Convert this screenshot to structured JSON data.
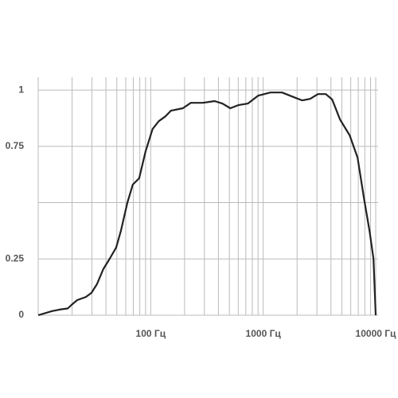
{
  "chart_data": {
    "type": "line",
    "log_x": true,
    "grid": true,
    "x": [
      10,
      13.2,
      15.5,
      18.3,
      19.8,
      22.2,
      26.5,
      29.7,
      33.3,
      37.9,
      43.2,
      49.3,
      54.3,
      61.9,
      69.3,
      78.9,
      90,
      104,
      118,
      135,
      151,
      193,
      227,
      290,
      370,
      434,
      510,
      600,
      730,
      900,
      1160,
      1470,
      1880,
      2220,
      2610,
      3070,
      3600,
      4100,
      4820,
      5870,
      6900,
      7880,
      8800,
      9550,
      10000
    ],
    "series": [
      {
        "color": "#222222",
        "values": [
          0,
          0.018,
          0.025,
          0.03,
          0.046,
          0.067,
          0.081,
          0.099,
          0.138,
          0.205,
          0.251,
          0.3,
          0.375,
          0.498,
          0.58,
          0.608,
          0.728,
          0.827,
          0.862,
          0.883,
          0.908,
          0.919,
          0.943,
          0.943,
          0.951,
          0.94,
          0.919,
          0.933,
          0.94,
          0.975,
          0.989,
          0.989,
          0.968,
          0.954,
          0.961,
          0.982,
          0.982,
          0.958,
          0.869,
          0.799,
          0.7,
          0.516,
          0.375,
          0.251,
          0
        ]
      }
    ],
    "xlim": [
      10,
      10500
    ],
    "xticks": [
      {
        "value": 100,
        "label": "100 Гц"
      },
      {
        "value": 1000,
        "label": "1000 Гц"
      },
      {
        "value": 10000,
        "label": "10000 Гц"
      }
    ],
    "x_minor_grid": [
      20,
      30,
      40,
      50,
      60,
      70,
      80,
      90,
      200,
      300,
      400,
      500,
      600,
      700,
      800,
      900,
      2000,
      3000,
      4000,
      5000,
      6000,
      7000,
      8000,
      9000
    ],
    "ylim": [
      0,
      1.057
    ],
    "yticks": [
      0,
      0.25,
      0.75,
      1
    ],
    "y_minor_grid": [
      0.5
    ]
  }
}
